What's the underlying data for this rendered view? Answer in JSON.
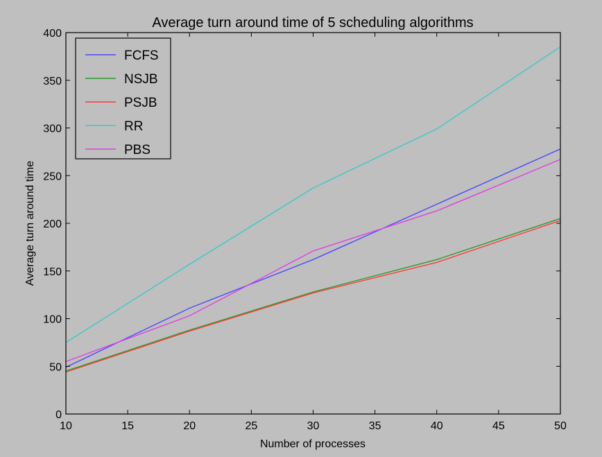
{
  "chart_data": {
    "type": "line",
    "title": "Average turn around time of 5 scheduling algorithms",
    "xlabel": "Number of processes",
    "ylabel": "Average turn around time",
    "xlim": [
      10,
      50
    ],
    "ylim": [
      0,
      400
    ],
    "xticks": [
      10,
      15,
      20,
      25,
      30,
      35,
      40,
      45,
      50
    ],
    "yticks": [
      0,
      50,
      100,
      150,
      200,
      250,
      300,
      350,
      400
    ],
    "grid": false,
    "legend_position": "top-left",
    "x": [
      10,
      20,
      30,
      40,
      50
    ],
    "series": [
      {
        "name": "FCFS",
        "color": "#4a4aff",
        "values": [
          49,
          111,
          162,
          220,
          278
        ]
      },
      {
        "name": "NSJB",
        "color": "#2a9a2a",
        "values": [
          45,
          88,
          128,
          162,
          205
        ]
      },
      {
        "name": "PSJB",
        "color": "#ff3a3a",
        "values": [
          44,
          87,
          127,
          159,
          203
        ]
      },
      {
        "name": "RR",
        "color": "#3cc8c8",
        "values": [
          75,
          157,
          237,
          299,
          385
        ]
      },
      {
        "name": "PBS",
        "color": "#e040e0",
        "values": [
          55,
          103,
          171,
          213,
          267
        ]
      }
    ]
  }
}
